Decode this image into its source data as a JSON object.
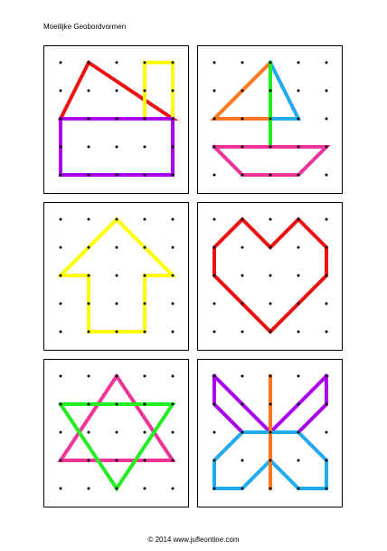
{
  "title": "Moeilijke Geobordvormen",
  "footer": "© 2014 www.jufleontine.com",
  "colors": {
    "red": "#ee1111",
    "yellow": "#ffff00",
    "purple": "#aa00ee",
    "orange": "#ff7722",
    "cyan": "#22aaee",
    "green": "#22ee22",
    "pink": "#ee3399",
    "dot": "#000000"
  },
  "cards": [
    {
      "name": "house",
      "bands": [
        {
          "color": "red",
          "points": [
            [
              1,
              0
            ],
            [
              0,
              2
            ],
            [
              4,
              2
            ],
            [
              1,
              0
            ]
          ]
        },
        {
          "color": "yellow",
          "points": [
            [
              3,
              0
            ],
            [
              4,
              0
            ],
            [
              4,
              2
            ],
            [
              3,
              2
            ],
            [
              3,
              0
            ]
          ]
        },
        {
          "color": "purple",
          "points": [
            [
              0,
              2
            ],
            [
              4,
              2
            ],
            [
              4,
              4
            ],
            [
              0,
              4
            ],
            [
              0,
              2
            ]
          ]
        }
      ]
    },
    {
      "name": "sailboat",
      "bands": [
        {
          "color": "orange",
          "points": [
            [
              2,
              0
            ],
            [
              0,
              2
            ],
            [
              2,
              2
            ]
          ]
        },
        {
          "color": "cyan",
          "points": [
            [
              2,
              0
            ],
            [
              3,
              2
            ],
            [
              2,
              2
            ]
          ]
        },
        {
          "color": "green",
          "points": [
            [
              2,
              0
            ],
            [
              2,
              3
            ]
          ]
        },
        {
          "color": "pink",
          "points": [
            [
              0,
              3
            ],
            [
              4,
              3
            ],
            [
              3,
              4
            ],
            [
              1,
              4
            ],
            [
              0,
              3
            ]
          ]
        }
      ]
    },
    {
      "name": "arrow",
      "bands": [
        {
          "color": "yellow",
          "points": [
            [
              2,
              0
            ],
            [
              0,
              2
            ],
            [
              1,
              2
            ],
            [
              1,
              4
            ],
            [
              3,
              4
            ],
            [
              3,
              2
            ],
            [
              4,
              2
            ],
            [
              2,
              0
            ]
          ]
        }
      ]
    },
    {
      "name": "heart",
      "bands": [
        {
          "color": "red",
          "points": [
            [
              1,
              0
            ],
            [
              2,
              1
            ],
            [
              3,
              0
            ],
            [
              4,
              1
            ],
            [
              4,
              2
            ],
            [
              2,
              4
            ],
            [
              0,
              2
            ],
            [
              0,
              1
            ],
            [
              1,
              0
            ]
          ]
        }
      ]
    },
    {
      "name": "star",
      "bands": [
        {
          "color": "pink",
          "points": [
            [
              2,
              0
            ],
            [
              0,
              3
            ],
            [
              4,
              3
            ],
            [
              2,
              0
            ]
          ]
        },
        {
          "color": "green",
          "points": [
            [
              0,
              1
            ],
            [
              4,
              1
            ],
            [
              2,
              4
            ],
            [
              0,
              1
            ]
          ]
        }
      ]
    },
    {
      "name": "butterfly",
      "bands": [
        {
          "color": "purple",
          "points": [
            [
              0,
              0
            ],
            [
              2,
              2
            ],
            [
              4,
              0
            ]
          ]
        },
        {
          "color": "purple",
          "points": [
            [
              0,
              0
            ],
            [
              0,
              1
            ],
            [
              1,
              2
            ],
            [
              2,
              2
            ],
            [
              3,
              2
            ],
            [
              4,
              1
            ],
            [
              4,
              0
            ]
          ]
        },
        {
          "color": "cyan",
          "points": [
            [
              2,
              2
            ],
            [
              1,
              2
            ],
            [
              0,
              3
            ],
            [
              0,
              4
            ],
            [
              1,
              4
            ],
            [
              2,
              3
            ],
            [
              3,
              4
            ],
            [
              4,
              4
            ],
            [
              4,
              3
            ],
            [
              3,
              2
            ],
            [
              2,
              2
            ]
          ]
        },
        {
          "color": "orange",
          "points": [
            [
              2,
              0
            ],
            [
              2,
              4
            ]
          ]
        }
      ]
    }
  ]
}
